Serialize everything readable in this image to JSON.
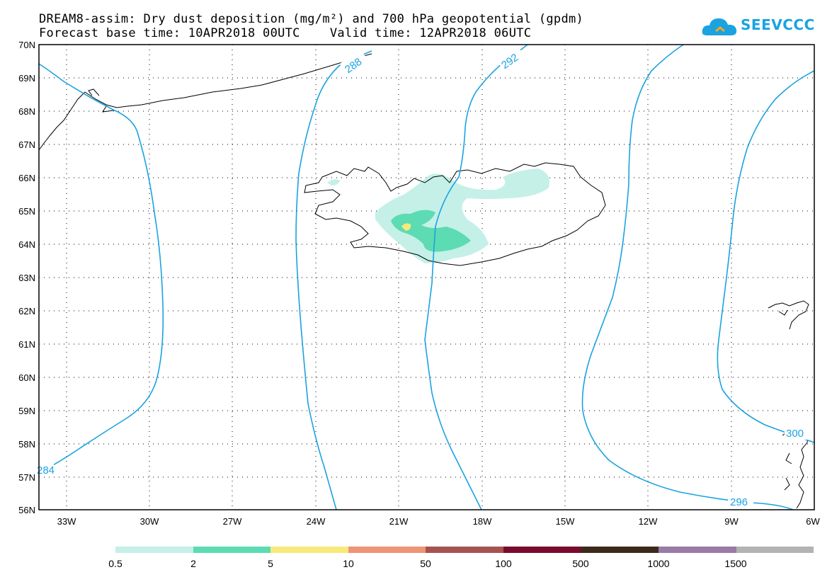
{
  "title": {
    "line1": "DREAM8-assim: Dry dust deposition (mg/m²) and 700 hPa geopotential (gpdm)",
    "line2": "Forecast base time: 10APR2018 00UTC    Valid time: 12APR2018 06UTC"
  },
  "logo": {
    "text": "SEEVCCC",
    "icon": "cloud-logo-icon"
  },
  "map": {
    "lat_labels": [
      "70N",
      "69N",
      "68N",
      "67N",
      "66N",
      "65N",
      "64N",
      "63N",
      "62N",
      "61N",
      "60N",
      "59N",
      "58N",
      "57N",
      "56N"
    ],
    "lon_labels": [
      "33W",
      "30W",
      "27W",
      "24W",
      "21W",
      "18W",
      "15W",
      "12W",
      "9W",
      "6W"
    ],
    "contour_labels": [
      "284",
      "288",
      "292",
      "296",
      "300"
    ],
    "contour_color": "#1aa3e0",
    "lat_range": [
      56,
      70
    ],
    "lon_range": [
      -34.2,
      -6
    ]
  },
  "legend": {
    "labels": [
      "0.5",
      "2",
      "5",
      "10",
      "50",
      "100",
      "500",
      "1000",
      "1500"
    ],
    "colors": [
      "#c4f0e8",
      "#5ddbb3",
      "#f7ea7a",
      "#ee9575",
      "#a6534f",
      "#7a0b2e",
      "#3d2a1c",
      "#9a7aa6",
      "#b3b3b3"
    ]
  }
}
